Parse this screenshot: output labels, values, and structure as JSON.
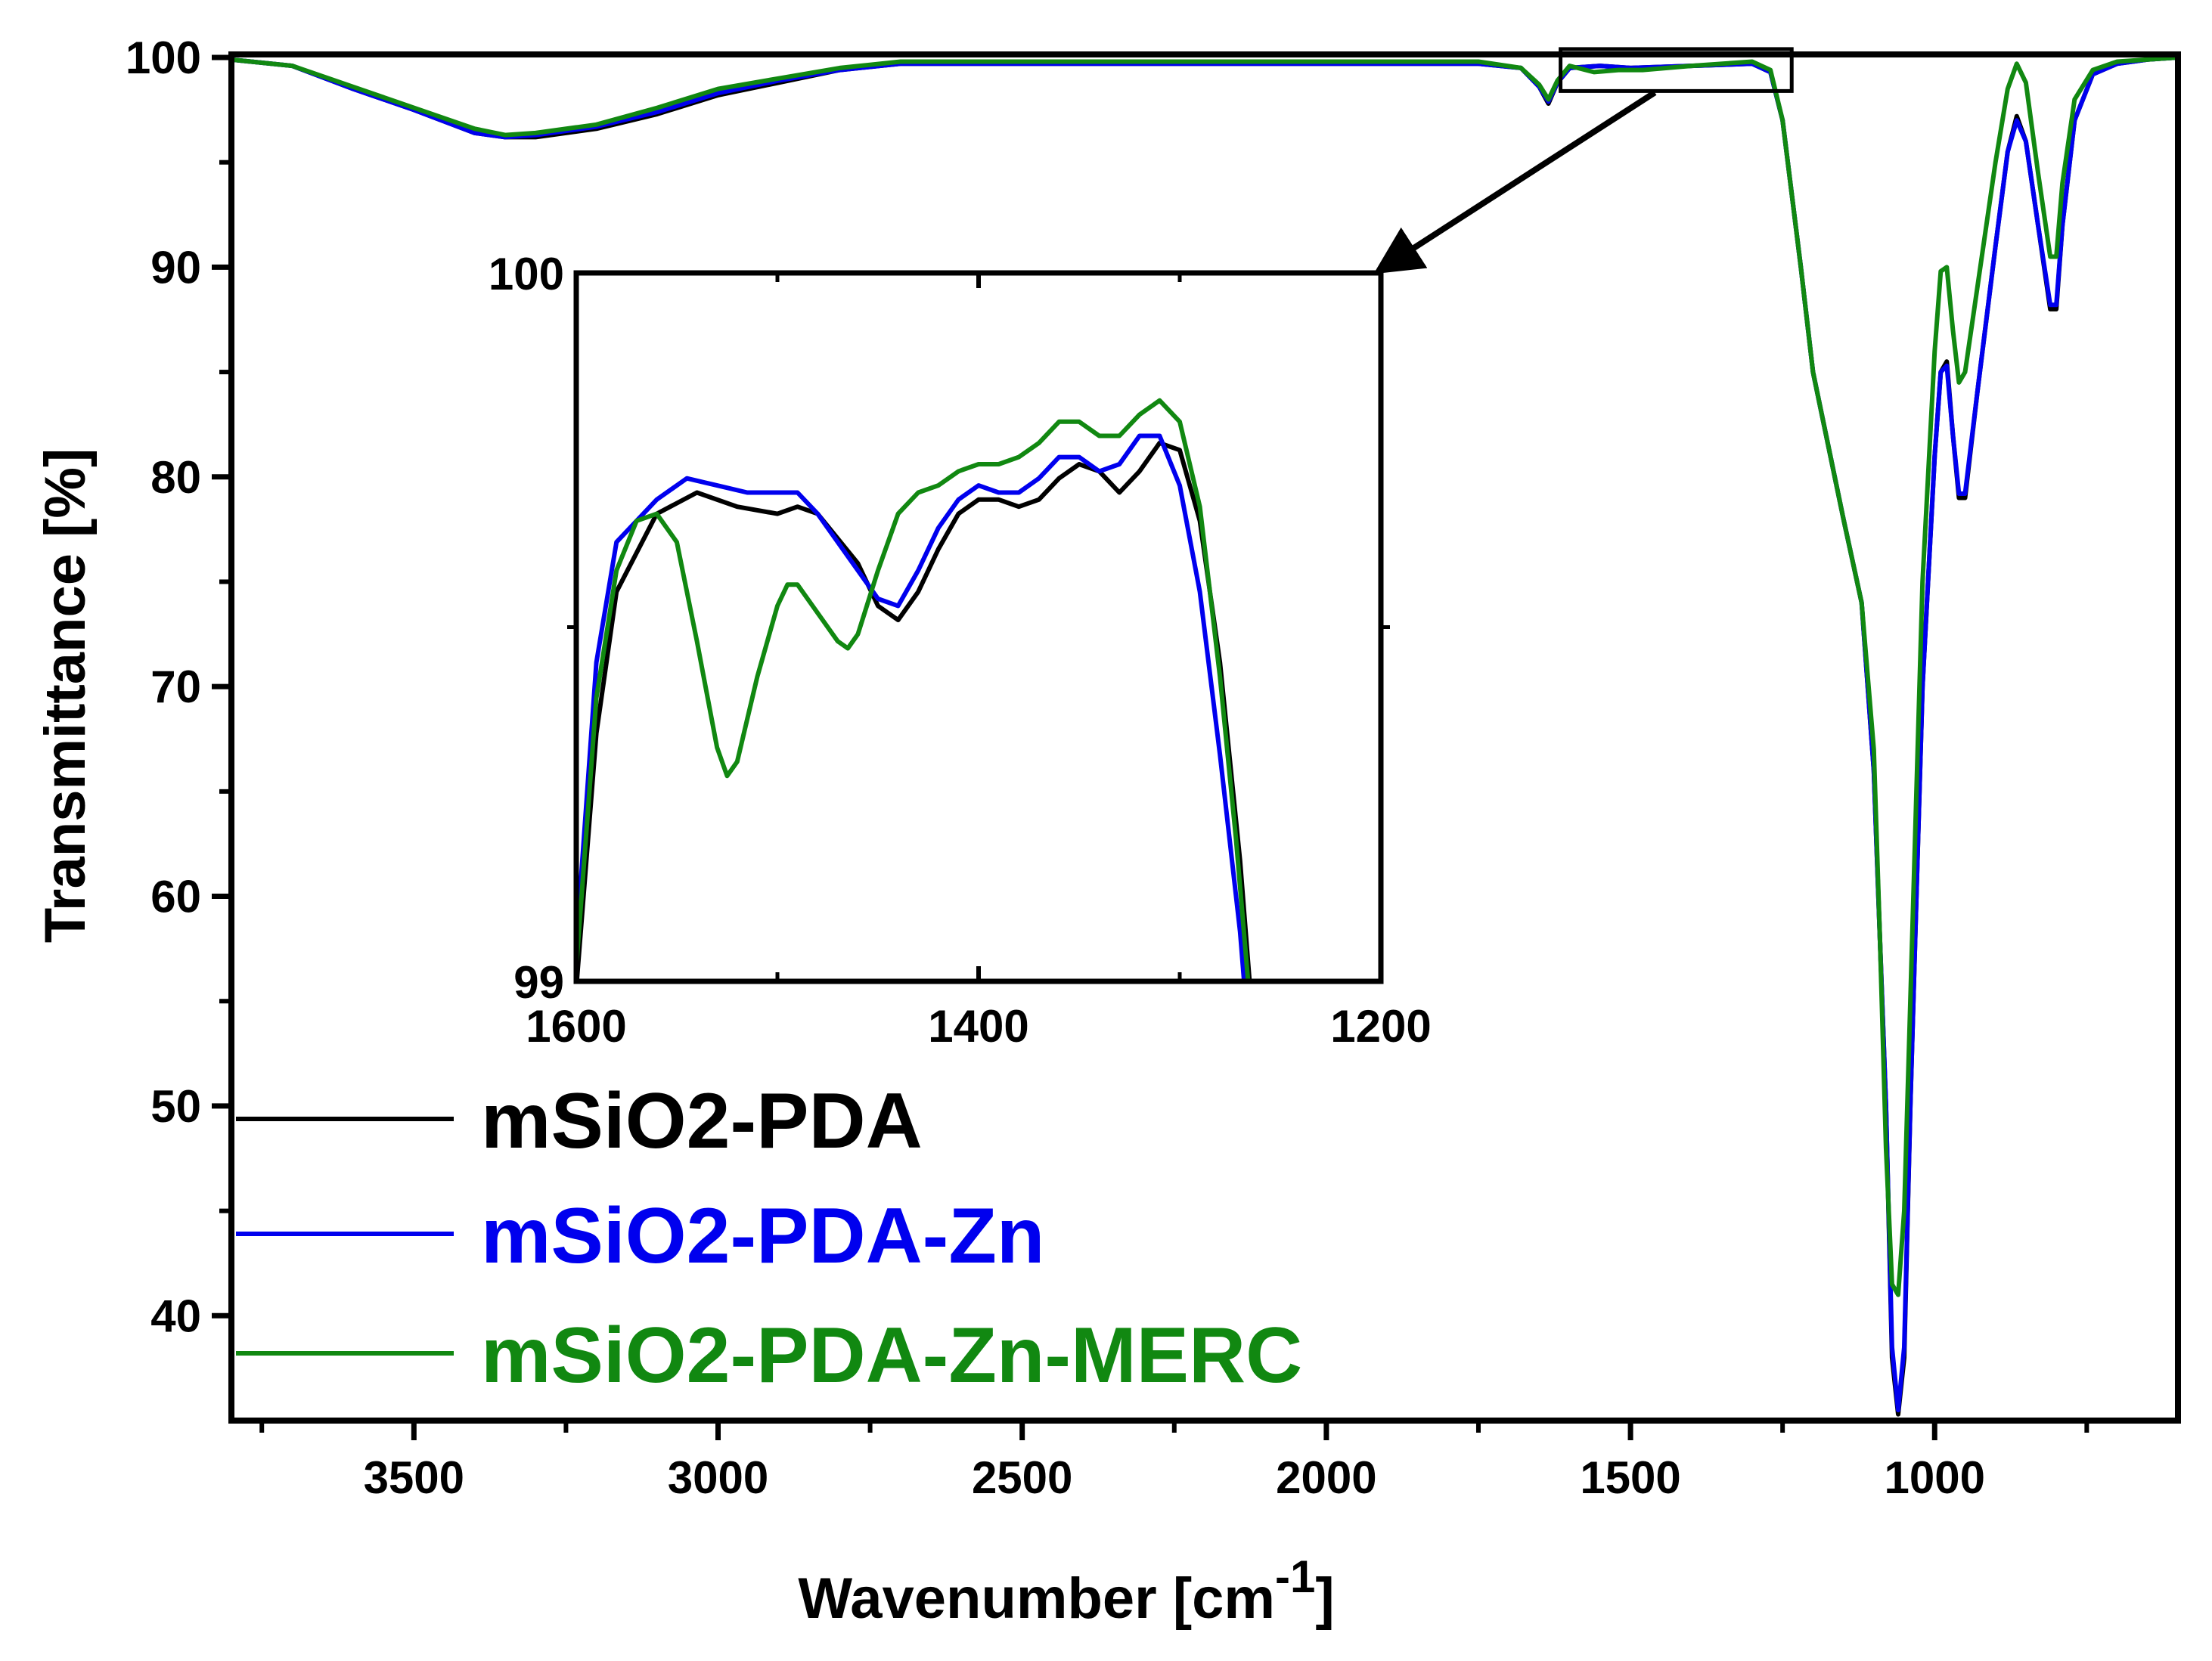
{
  "chart_data": {
    "type": "line",
    "title": "",
    "xlabel": "Wavenumber [cm",
    "xlabel_sup": "-1",
    "xlabel_close": "]",
    "ylabel": "Transmittance [%]",
    "xlim": [
      3800,
      600
    ],
    "ylim": [
      35,
      100
    ],
    "x_ticks": [
      3500,
      3000,
      2500,
      2000,
      1500,
      1000
    ],
    "x_tick_labels": [
      "3500",
      "3000",
      "2500",
      "2000",
      "1500",
      "1000"
    ],
    "y_ticks": [
      40,
      50,
      60,
      70,
      80,
      90,
      100
    ],
    "y_tick_labels": [
      "40",
      "50",
      "60",
      "70",
      "80",
      "90",
      "100"
    ],
    "legend_position": "bottom-left",
    "series": [
      {
        "name": "mSiO2-PDA",
        "color": "#000000",
        "points": [
          [
            3800,
            99.9
          ],
          [
            3700,
            99.6
          ],
          [
            3600,
            98.5
          ],
          [
            3500,
            97.5
          ],
          [
            3400,
            96.4
          ],
          [
            3350,
            96.2
          ],
          [
            3300,
            96.2
          ],
          [
            3200,
            96.6
          ],
          [
            3100,
            97.3
          ],
          [
            3000,
            98.2
          ],
          [
            2900,
            98.8
          ],
          [
            2800,
            99.4
          ],
          [
            2700,
            99.7
          ],
          [
            2500,
            99.7
          ],
          [
            2300,
            99.7
          ],
          [
            2000,
            99.7
          ],
          [
            1750,
            99.7
          ],
          [
            1680,
            99.5
          ],
          [
            1650,
            98.6
          ],
          [
            1635,
            97.8
          ],
          [
            1620,
            98.8
          ],
          [
            1600,
            99.5
          ],
          [
            1550,
            99.6
          ],
          [
            1500,
            99.5
          ],
          [
            1400,
            99.6
          ],
          [
            1300,
            99.7
          ],
          [
            1270,
            99.3
          ],
          [
            1250,
            97.0
          ],
          [
            1220,
            90.0
          ],
          [
            1200,
            85.0
          ],
          [
            1150,
            78.0
          ],
          [
            1120,
            74.0
          ],
          [
            1100,
            66.0
          ],
          [
            1080,
            50.0
          ],
          [
            1070,
            38.0
          ],
          [
            1060,
            35.3
          ],
          [
            1050,
            38.0
          ],
          [
            1040,
            50.0
          ],
          [
            1020,
            70.0
          ],
          [
            1000,
            81.0
          ],
          [
            990,
            85.0
          ],
          [
            980,
            85.5
          ],
          [
            970,
            82.0
          ],
          [
            960,
            79.0
          ],
          [
            950,
            79.0
          ],
          [
            930,
            84.0
          ],
          [
            900,
            91.0
          ],
          [
            880,
            95.5
          ],
          [
            865,
            97.2
          ],
          [
            850,
            96.0
          ],
          [
            830,
            92.0
          ],
          [
            810,
            88.0
          ],
          [
            800,
            88.0
          ],
          [
            790,
            92.0
          ],
          [
            770,
            97.0
          ],
          [
            740,
            99.2
          ],
          [
            700,
            99.7
          ],
          [
            650,
            99.9
          ],
          [
            600,
            100.0
          ]
        ]
      },
      {
        "name": "mSiO2-PDA-Zn",
        "color": "#0000ee",
        "points": [
          [
            3800,
            99.9
          ],
          [
            3700,
            99.6
          ],
          [
            3600,
            98.5
          ],
          [
            3500,
            97.5
          ],
          [
            3400,
            96.4
          ],
          [
            3350,
            96.2
          ],
          [
            3300,
            96.3
          ],
          [
            3200,
            96.7
          ],
          [
            3100,
            97.4
          ],
          [
            3000,
            98.3
          ],
          [
            2900,
            98.9
          ],
          [
            2800,
            99.4
          ],
          [
            2700,
            99.7
          ],
          [
            2500,
            99.7
          ],
          [
            2300,
            99.7
          ],
          [
            2000,
            99.7
          ],
          [
            1750,
            99.7
          ],
          [
            1680,
            99.5
          ],
          [
            1650,
            98.6
          ],
          [
            1635,
            97.9
          ],
          [
            1620,
            98.8
          ],
          [
            1600,
            99.5
          ],
          [
            1550,
            99.6
          ],
          [
            1500,
            99.5
          ],
          [
            1400,
            99.6
          ],
          [
            1300,
            99.7
          ],
          [
            1270,
            99.3
          ],
          [
            1250,
            97.0
          ],
          [
            1220,
            90.0
          ],
          [
            1200,
            85.0
          ],
          [
            1150,
            78.0
          ],
          [
            1120,
            74.0
          ],
          [
            1100,
            66.0
          ],
          [
            1080,
            50.0
          ],
          [
            1070,
            38.5
          ],
          [
            1060,
            35.5
          ],
          [
            1050,
            38.5
          ],
          [
            1040,
            50.0
          ],
          [
            1020,
            70.0
          ],
          [
            1000,
            81.0
          ],
          [
            990,
            85.0
          ],
          [
            980,
            85.3
          ],
          [
            970,
            82.0
          ],
          [
            960,
            79.2
          ],
          [
            950,
            79.2
          ],
          [
            930,
            84.0
          ],
          [
            900,
            91.0
          ],
          [
            880,
            95.5
          ],
          [
            865,
            97.0
          ],
          [
            850,
            96.0
          ],
          [
            830,
            92.0
          ],
          [
            810,
            88.2
          ],
          [
            800,
            88.2
          ],
          [
            790,
            92.0
          ],
          [
            770,
            97.0
          ],
          [
            740,
            99.2
          ],
          [
            700,
            99.7
          ],
          [
            650,
            99.9
          ],
          [
            600,
            100.0
          ]
        ]
      },
      {
        "name": "mSiO2-PDA-Zn-MERC",
        "color": "#118811",
        "points": [
          [
            3800,
            99.9
          ],
          [
            3700,
            99.6
          ],
          [
            3600,
            98.6
          ],
          [
            3500,
            97.6
          ],
          [
            3400,
            96.6
          ],
          [
            3350,
            96.3
          ],
          [
            3300,
            96.4
          ],
          [
            3200,
            96.8
          ],
          [
            3100,
            97.6
          ],
          [
            3000,
            98.5
          ],
          [
            2900,
            99.0
          ],
          [
            2800,
            99.5
          ],
          [
            2700,
            99.8
          ],
          [
            2500,
            99.8
          ],
          [
            2300,
            99.8
          ],
          [
            2000,
            99.8
          ],
          [
            1750,
            99.8
          ],
          [
            1680,
            99.5
          ],
          [
            1650,
            98.7
          ],
          [
            1635,
            98.0
          ],
          [
            1620,
            98.9
          ],
          [
            1600,
            99.6
          ],
          [
            1560,
            99.3
          ],
          [
            1520,
            99.4
          ],
          [
            1480,
            99.4
          ],
          [
            1400,
            99.6
          ],
          [
            1300,
            99.8
          ],
          [
            1270,
            99.4
          ],
          [
            1250,
            97.0
          ],
          [
            1220,
            90.0
          ],
          [
            1200,
            85.0
          ],
          [
            1150,
            78.0
          ],
          [
            1120,
            74.0
          ],
          [
            1100,
            67.0
          ],
          [
            1090,
            58.0
          ],
          [
            1080,
            48.0
          ],
          [
            1070,
            41.5
          ],
          [
            1060,
            41.0
          ],
          [
            1050,
            45.0
          ],
          [
            1040,
            55.0
          ],
          [
            1020,
            75.0
          ],
          [
            1000,
            86.0
          ],
          [
            990,
            89.8
          ],
          [
            980,
            90.0
          ],
          [
            970,
            87.0
          ],
          [
            960,
            84.5
          ],
          [
            950,
            85.0
          ],
          [
            930,
            89.0
          ],
          [
            900,
            95.0
          ],
          [
            880,
            98.5
          ],
          [
            865,
            99.7
          ],
          [
            850,
            98.8
          ],
          [
            830,
            94.5
          ],
          [
            810,
            90.5
          ],
          [
            800,
            90.5
          ],
          [
            790,
            94.0
          ],
          [
            770,
            98.0
          ],
          [
            740,
            99.4
          ],
          [
            700,
            99.8
          ],
          [
            650,
            99.9
          ],
          [
            600,
            100.0
          ]
        ]
      }
    ],
    "inset": {
      "xlim": [
        1600,
        1200
      ],
      "ylim": [
        99,
        100
      ],
      "x_ticks": [
        1600,
        1400,
        1200
      ],
      "x_tick_labels": [
        "1600",
        "1400",
        "1200"
      ],
      "y_ticks": [
        99,
        100
      ],
      "y_tick_labels": [
        "99",
        "100"
      ],
      "source_region": {
        "x": [
          1615,
          1235
        ],
        "y": [
          98.4,
          100.4
        ]
      },
      "series": [
        {
          "name": "mSiO2-PDA",
          "color": "#000000",
          "points": [
            [
              1600,
              98.99
            ],
            [
              1590,
              99.35
            ],
            [
              1580,
              99.55
            ],
            [
              1560,
              99.66
            ],
            [
              1540,
              99.69
            ],
            [
              1520,
              99.67
            ],
            [
              1500,
              99.66
            ],
            [
              1490,
              99.67
            ],
            [
              1480,
              99.66
            ],
            [
              1460,
              99.59
            ],
            [
              1450,
              99.53
            ],
            [
              1440,
              99.51
            ],
            [
              1430,
              99.55
            ],
            [
              1420,
              99.61
            ],
            [
              1410,
              99.66
            ],
            [
              1400,
              99.68
            ],
            [
              1390,
              99.68
            ],
            [
              1380,
              99.67
            ],
            [
              1370,
              99.68
            ],
            [
              1360,
              99.71
            ],
            [
              1350,
              99.73
            ],
            [
              1340,
              99.72
            ],
            [
              1330,
              99.69
            ],
            [
              1320,
              99.72
            ],
            [
              1310,
              99.76
            ],
            [
              1300,
              99.75
            ],
            [
              1290,
              99.65
            ],
            [
              1280,
              99.45
            ],
            [
              1270,
              99.17
            ],
            [
              1265,
              98.99
            ]
          ]
        },
        {
          "name": "mSiO2-PDA-Zn",
          "color": "#0000ee",
          "points": [
            [
              1600,
              99.05
            ],
            [
              1590,
              99.45
            ],
            [
              1580,
              99.62
            ],
            [
              1560,
              99.68
            ],
            [
              1545,
              99.71
            ],
            [
              1530,
              99.7
            ],
            [
              1515,
              99.69
            ],
            [
              1500,
              99.69
            ],
            [
              1490,
              99.69
            ],
            [
              1480,
              99.66
            ],
            [
              1460,
              99.58
            ],
            [
              1450,
              99.54
            ],
            [
              1440,
              99.53
            ],
            [
              1430,
              99.58
            ],
            [
              1420,
              99.64
            ],
            [
              1410,
              99.68
            ],
            [
              1400,
              99.7
            ],
            [
              1390,
              99.69
            ],
            [
              1380,
              99.69
            ],
            [
              1370,
              99.71
            ],
            [
              1360,
              99.74
            ],
            [
              1350,
              99.74
            ],
            [
              1340,
              99.72
            ],
            [
              1330,
              99.73
            ],
            [
              1320,
              99.77
            ],
            [
              1310,
              99.77
            ],
            [
              1300,
              99.7
            ],
            [
              1290,
              99.55
            ],
            [
              1280,
              99.32
            ],
            [
              1270,
              99.07
            ],
            [
              1268,
              99.0
            ]
          ]
        },
        {
          "name": "mSiO2-PDA-Zn-MERC",
          "color": "#118811",
          "points": [
            [
              1600,
              99.02
            ],
            [
              1590,
              99.4
            ],
            [
              1580,
              99.58
            ],
            [
              1570,
              99.65
            ],
            [
              1560,
              99.66
            ],
            [
              1550,
              99.62
            ],
            [
              1540,
              99.48
            ],
            [
              1530,
              99.33
            ],
            [
              1525,
              99.29
            ],
            [
              1520,
              99.31
            ],
            [
              1510,
              99.43
            ],
            [
              1500,
              99.53
            ],
            [
              1495,
              99.56
            ],
            [
              1490,
              99.56
            ],
            [
              1480,
              99.52
            ],
            [
              1470,
              99.48
            ],
            [
              1465,
              99.47
            ],
            [
              1460,
              99.49
            ],
            [
              1450,
              99.58
            ],
            [
              1440,
              99.66
            ],
            [
              1430,
              99.69
            ],
            [
              1420,
              99.7
            ],
            [
              1410,
              99.72
            ],
            [
              1400,
              99.73
            ],
            [
              1390,
              99.73
            ],
            [
              1380,
              99.74
            ],
            [
              1370,
              99.76
            ],
            [
              1360,
              99.79
            ],
            [
              1350,
              99.79
            ],
            [
              1340,
              99.77
            ],
            [
              1330,
              99.77
            ],
            [
              1320,
              99.8
            ],
            [
              1310,
              99.82
            ],
            [
              1300,
              99.79
            ],
            [
              1290,
              99.67
            ],
            [
              1280,
              99.43
            ],
            [
              1272,
              99.2
            ],
            [
              1266,
              99.0
            ]
          ]
        }
      ]
    }
  }
}
